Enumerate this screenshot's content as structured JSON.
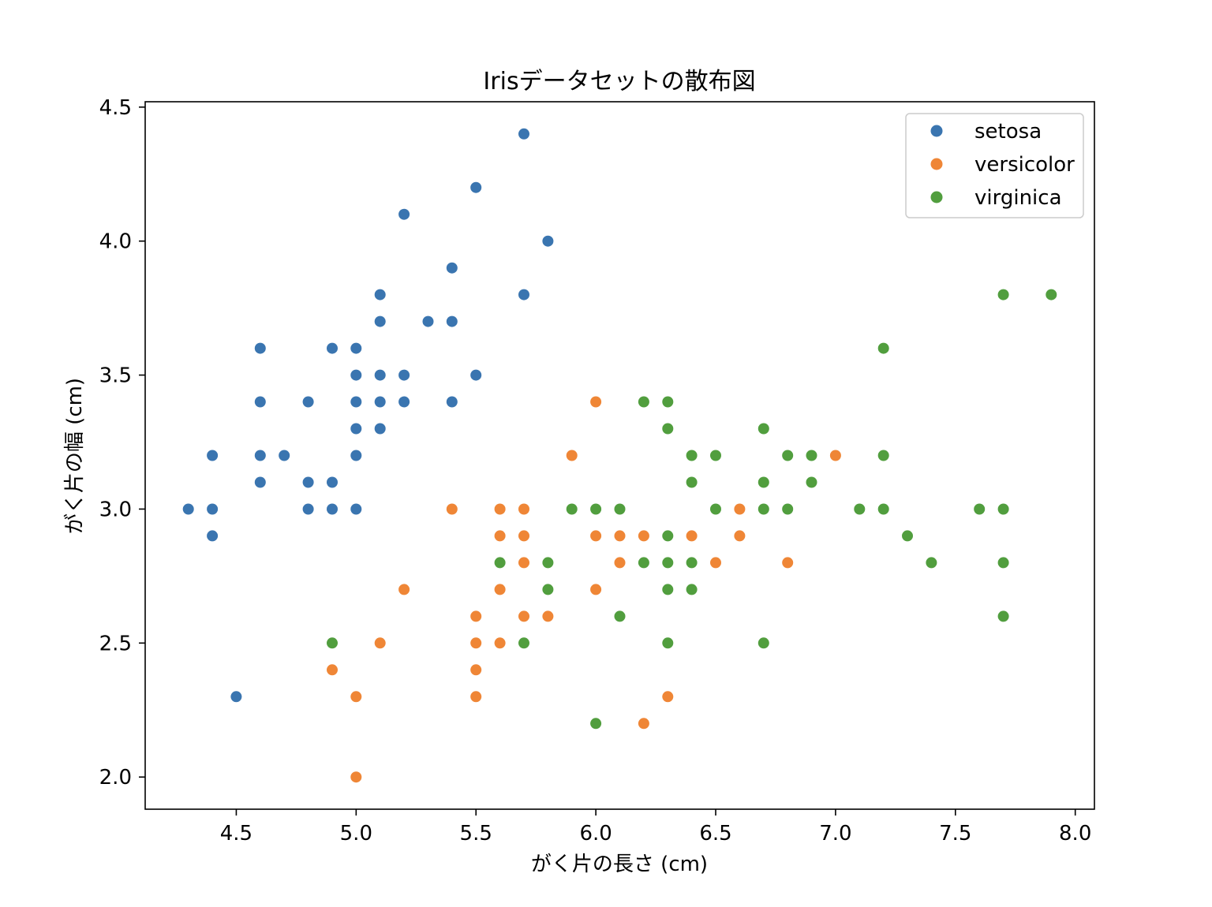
{
  "chart_data": {
    "type": "scatter",
    "title": "Irisデータセットの散布図",
    "xlabel": "がく片の長さ (cm)",
    "ylabel": "がく片の幅 (cm)",
    "xlim": [
      4.12,
      8.08
    ],
    "ylim": [
      1.88,
      4.52
    ],
    "xticks": [
      4.5,
      5.0,
      5.5,
      6.0,
      6.5,
      7.0,
      7.5,
      8.0
    ],
    "yticks": [
      2.0,
      2.5,
      3.0,
      3.5,
      4.0,
      4.5
    ],
    "xtick_labels": [
      "4.5",
      "5.0",
      "5.5",
      "6.0",
      "6.5",
      "7.0",
      "7.5",
      "8.0"
    ],
    "ytick_labels": [
      "2.0",
      "2.5",
      "3.0",
      "3.5",
      "4.0",
      "4.5"
    ],
    "grid": false,
    "legend_position": "top-right",
    "series": [
      {
        "name": "setosa",
        "color": "#3a75b0",
        "points": [
          [
            5.7,
            4.4
          ],
          [
            5.5,
            4.2
          ],
          [
            5.2,
            4.1
          ],
          [
            5.8,
            4.0
          ],
          [
            5.4,
            3.9
          ],
          [
            5.1,
            3.8
          ],
          [
            5.7,
            3.8
          ],
          [
            5.1,
            3.7
          ],
          [
            5.3,
            3.7
          ],
          [
            5.4,
            3.7
          ],
          [
            4.6,
            3.6
          ],
          [
            4.9,
            3.6
          ],
          [
            5.0,
            3.6
          ],
          [
            5.0,
            3.5
          ],
          [
            5.1,
            3.5
          ],
          [
            5.2,
            3.5
          ],
          [
            5.5,
            3.5
          ],
          [
            4.6,
            3.4
          ],
          [
            4.8,
            3.4
          ],
          [
            5.0,
            3.4
          ],
          [
            5.1,
            3.4
          ],
          [
            5.2,
            3.4
          ],
          [
            5.4,
            3.4
          ],
          [
            5.0,
            3.3
          ],
          [
            5.1,
            3.3
          ],
          [
            4.4,
            3.2
          ],
          [
            4.6,
            3.2
          ],
          [
            4.7,
            3.2
          ],
          [
            5.0,
            3.2
          ],
          [
            4.6,
            3.1
          ],
          [
            4.8,
            3.1
          ],
          [
            4.9,
            3.1
          ],
          [
            4.3,
            3.0
          ],
          [
            4.4,
            3.0
          ],
          [
            4.8,
            3.0
          ],
          [
            4.9,
            3.0
          ],
          [
            5.0,
            3.0
          ],
          [
            4.4,
            2.9
          ],
          [
            4.5,
            2.3
          ]
        ]
      },
      {
        "name": "versicolor",
        "color": "#ef8636",
        "points": [
          [
            6.0,
            3.4
          ],
          [
            5.9,
            3.2
          ],
          [
            7.0,
            3.2
          ],
          [
            5.4,
            3.0
          ],
          [
            5.6,
            3.0
          ],
          [
            5.7,
            3.0
          ],
          [
            6.6,
            3.0
          ],
          [
            5.6,
            2.9
          ],
          [
            5.7,
            2.9
          ],
          [
            6.0,
            2.9
          ],
          [
            6.1,
            2.9
          ],
          [
            6.2,
            2.9
          ],
          [
            6.4,
            2.9
          ],
          [
            6.6,
            2.9
          ],
          [
            5.7,
            2.8
          ],
          [
            6.1,
            2.8
          ],
          [
            6.5,
            2.8
          ],
          [
            6.8,
            2.8
          ],
          [
            5.2,
            2.7
          ],
          [
            5.6,
            2.7
          ],
          [
            6.0,
            2.7
          ],
          [
            5.5,
            2.6
          ],
          [
            5.7,
            2.6
          ],
          [
            5.8,
            2.6
          ],
          [
            5.1,
            2.5
          ],
          [
            5.5,
            2.5
          ],
          [
            5.6,
            2.5
          ],
          [
            4.9,
            2.4
          ],
          [
            5.5,
            2.4
          ],
          [
            5.0,
            2.3
          ],
          [
            5.5,
            2.3
          ],
          [
            6.3,
            2.3
          ],
          [
            6.2,
            2.2
          ],
          [
            5.0,
            2.0
          ]
        ]
      },
      {
        "name": "virginica",
        "color": "#519e3e",
        "points": [
          [
            7.7,
            3.8
          ],
          [
            7.9,
            3.8
          ],
          [
            7.2,
            3.6
          ],
          [
            6.2,
            3.4
          ],
          [
            6.3,
            3.4
          ],
          [
            6.3,
            3.3
          ],
          [
            6.7,
            3.3
          ],
          [
            6.4,
            3.2
          ],
          [
            6.5,
            3.2
          ],
          [
            6.8,
            3.2
          ],
          [
            6.9,
            3.2
          ],
          [
            7.2,
            3.2
          ],
          [
            6.4,
            3.1
          ],
          [
            6.7,
            3.1
          ],
          [
            6.9,
            3.1
          ],
          [
            5.9,
            3.0
          ],
          [
            6.0,
            3.0
          ],
          [
            6.1,
            3.0
          ],
          [
            6.5,
            3.0
          ],
          [
            6.7,
            3.0
          ],
          [
            6.8,
            3.0
          ],
          [
            7.1,
            3.0
          ],
          [
            7.2,
            3.0
          ],
          [
            7.6,
            3.0
          ],
          [
            7.7,
            3.0
          ],
          [
            6.3,
            2.9
          ],
          [
            7.3,
            2.9
          ],
          [
            5.6,
            2.8
          ],
          [
            5.8,
            2.8
          ],
          [
            6.2,
            2.8
          ],
          [
            6.3,
            2.8
          ],
          [
            6.4,
            2.8
          ],
          [
            7.4,
            2.8
          ],
          [
            7.7,
            2.8
          ],
          [
            5.8,
            2.7
          ],
          [
            6.3,
            2.7
          ],
          [
            6.4,
            2.7
          ],
          [
            6.1,
            2.6
          ],
          [
            7.7,
            2.6
          ],
          [
            4.9,
            2.5
          ],
          [
            5.7,
            2.5
          ],
          [
            6.3,
            2.5
          ],
          [
            6.7,
            2.5
          ],
          [
            6.0,
            2.2
          ]
        ]
      }
    ]
  }
}
